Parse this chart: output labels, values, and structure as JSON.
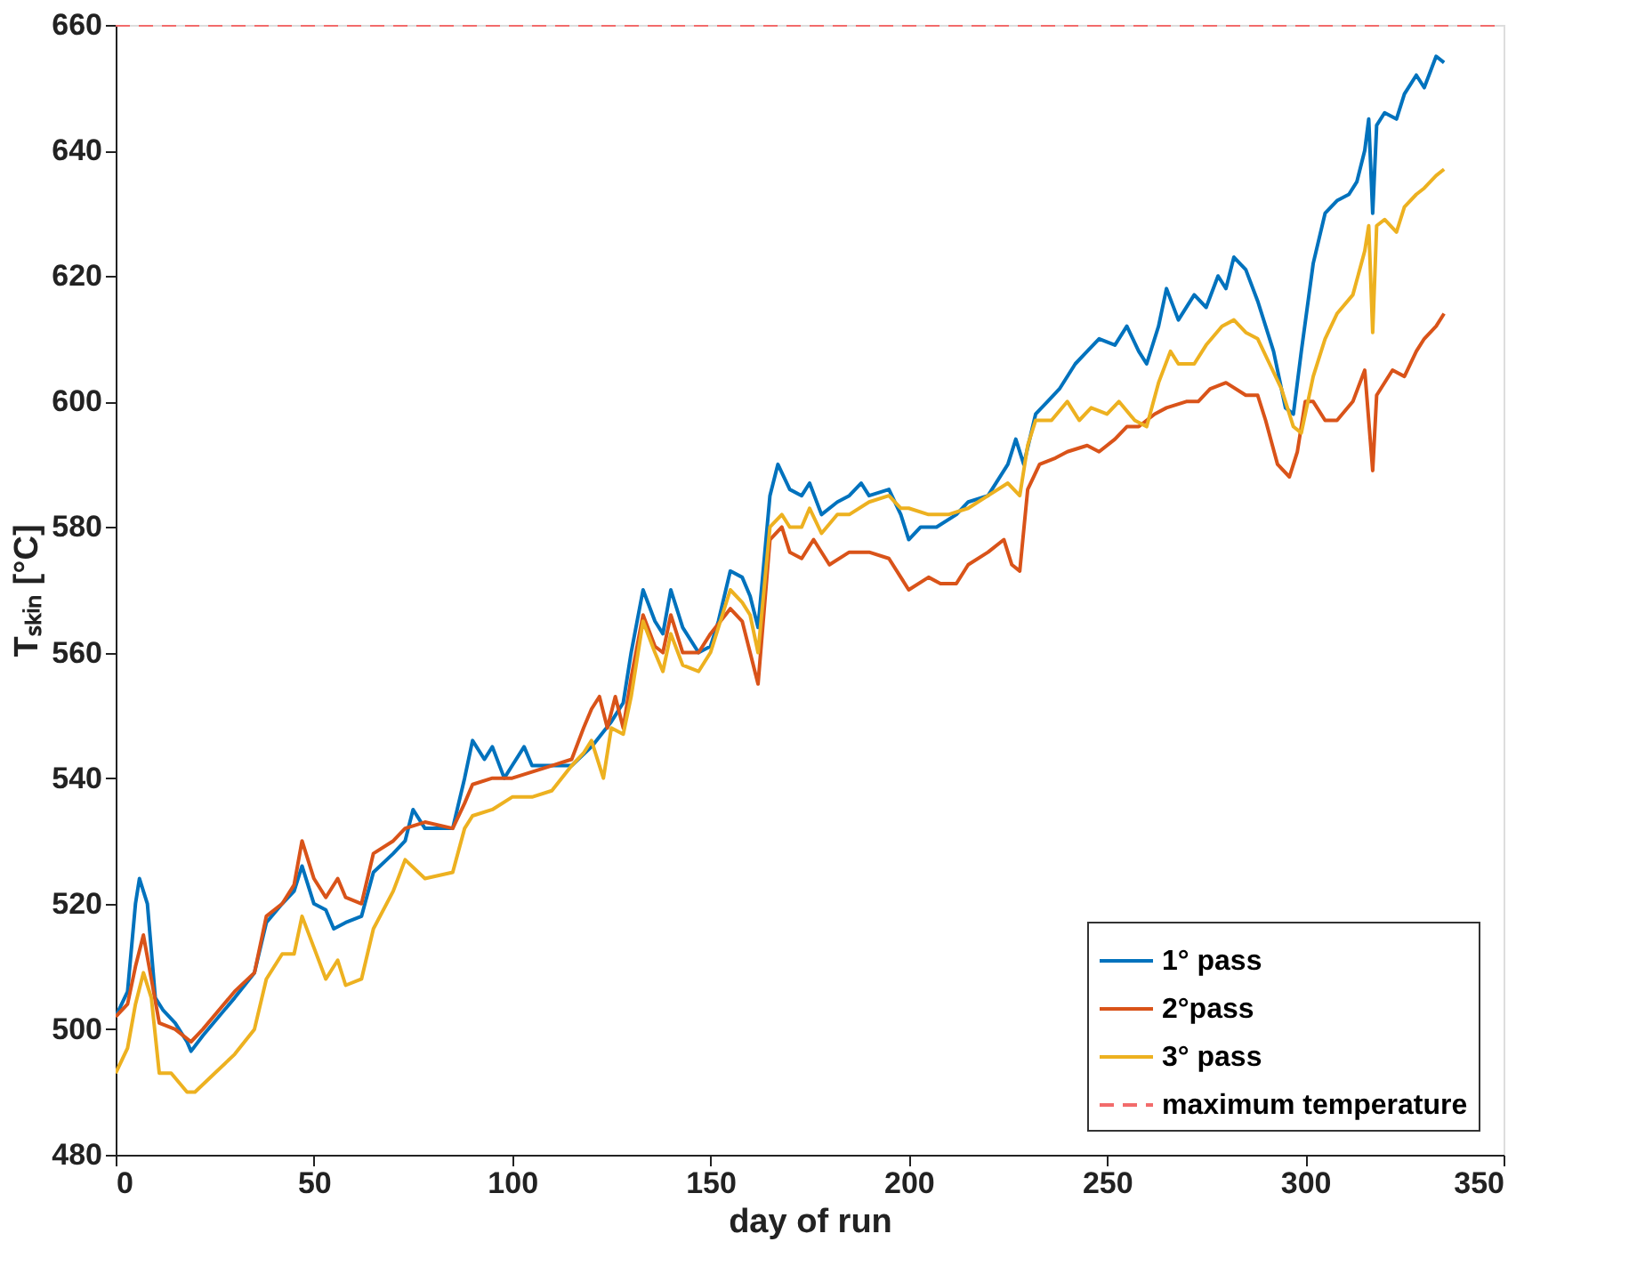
{
  "chart_data": {
    "type": "line",
    "xlabel": "day of run",
    "ylabel": "Tₛₖᵢₙ [°C]",
    "xlim": [
      0,
      350
    ],
    "xticks": [
      0,
      50,
      100,
      150,
      200,
      250,
      300,
      350
    ],
    "ylim": [
      480,
      660
    ],
    "yticks": [
      480,
      500,
      520,
      540,
      560,
      580,
      600,
      620,
      640,
      660
    ],
    "grid": false,
    "legend": "bottom right",
    "line_style": "solid",
    "marker": "none",
    "series": [
      {
        "name": "1° pass",
        "color": "#0072bd",
        "x": [
          0,
          3,
          5,
          6,
          8,
          10,
          12,
          15,
          18,
          19,
          22,
          30,
          35,
          38,
          42,
          45,
          47,
          50,
          53,
          55,
          58,
          62,
          65,
          70,
          73,
          75,
          78,
          85,
          88,
          90,
          93,
          95,
          98,
          100,
          103,
          105,
          110,
          115,
          120,
          125,
          128,
          130,
          133,
          136,
          138,
          140,
          143,
          147,
          150,
          152,
          155,
          158,
          160,
          162,
          165,
          167,
          170,
          173,
          175,
          178,
          182,
          185,
          188,
          190,
          195,
          198,
          200,
          203,
          207,
          212,
          215,
          220,
          225,
          227,
          229,
          232,
          235,
          238,
          242,
          245,
          248,
          252,
          255,
          258,
          260,
          263,
          265,
          268,
          272,
          275,
          278,
          280,
          282,
          285,
          288,
          290,
          292,
          295,
          297,
          299,
          302,
          305,
          308,
          311,
          313,
          315,
          316,
          317,
          318,
          320,
          323,
          325,
          328,
          330,
          333,
          335
        ],
        "values": [
          502,
          506,
          520,
          524,
          520,
          505,
          503,
          501,
          498,
          496.5,
          499,
          505,
          509,
          517,
          520,
          522,
          526,
          520,
          519,
          516,
          517,
          518,
          525,
          528,
          530,
          535,
          532,
          532,
          540,
          546,
          543,
          545,
          540,
          542,
          545,
          542,
          542,
          542,
          545,
          549,
          552,
          560,
          570,
          565,
          563,
          570,
          564,
          560,
          561,
          565,
          573,
          572,
          569,
          564,
          585,
          590,
          586,
          585,
          587,
          582,
          584,
          585,
          587,
          585,
          586,
          582,
          578,
          580,
          580,
          582,
          584,
          585,
          590,
          594,
          590,
          598,
          600,
          602,
          606,
          608,
          610,
          609,
          612,
          608,
          606,
          612,
          618,
          613,
          617,
          615,
          620,
          618,
          623,
          621,
          616,
          612,
          608,
          599,
          598,
          608,
          622,
          630,
          632,
          633,
          635,
          640,
          645,
          630,
          644,
          646,
          645,
          649,
          652,
          650,
          655,
          654
        ]
      },
      {
        "name": "2°pass",
        "color": "#d95319",
        "x": [
          0,
          3,
          5,
          7,
          9,
          11,
          15,
          19,
          22,
          30,
          35,
          38,
          42,
          45,
          47,
          50,
          53,
          56,
          58,
          62,
          65,
          70,
          73,
          78,
          85,
          88,
          90,
          95,
          100,
          105,
          110,
          115,
          118,
          120,
          122,
          124,
          126,
          128,
          130,
          133,
          136,
          138,
          140,
          143,
          147,
          150,
          155,
          158,
          160,
          162,
          165,
          168,
          170,
          173,
          176,
          180,
          185,
          190,
          195,
          198,
          200,
          205,
          208,
          212,
          215,
          220,
          224,
          226,
          228,
          230,
          233,
          237,
          240,
          245,
          248,
          252,
          255,
          258,
          262,
          265,
          270,
          273,
          276,
          280,
          285,
          288,
          290,
          293,
          296,
          298,
          300,
          302,
          305,
          308,
          312,
          315,
          317,
          318,
          322,
          325,
          328,
          330,
          333,
          335
        ],
        "values": [
          502,
          504,
          510,
          515,
          508,
          501,
          500,
          498,
          500,
          506,
          509,
          518,
          520,
          523,
          530,
          524,
          521,
          524,
          521,
          520,
          528,
          530,
          532,
          533,
          532,
          536,
          539,
          540,
          540,
          541,
          542,
          543,
          548,
          551,
          553,
          548,
          553,
          548,
          556,
          566,
          561,
          560,
          566,
          560,
          560,
          563,
          567,
          565,
          560,
          555,
          578,
          580,
          576,
          575,
          578,
          574,
          576,
          576,
          575,
          572,
          570,
          572,
          571,
          571,
          574,
          576,
          578,
          574,
          573,
          586,
          590,
          591,
          592,
          593,
          592,
          594,
          596,
          596,
          598,
          599,
          600,
          600,
          602,
          603,
          601,
          601,
          597,
          590,
          588,
          592,
          600,
          600,
          597,
          597,
          600,
          605,
          589,
          601,
          605,
          604,
          608,
          610,
          612,
          614
        ]
      },
      {
        "name": "3° pass",
        "color": "#edb120",
        "x": [
          0,
          3,
          5,
          7,
          9,
          11,
          14,
          18,
          20,
          25,
          30,
          35,
          38,
          42,
          45,
          47,
          50,
          53,
          56,
          58,
          62,
          65,
          70,
          73,
          78,
          85,
          88,
          90,
          95,
          100,
          105,
          110,
          115,
          118,
          120,
          123,
          125,
          128,
          130,
          133,
          136,
          138,
          140,
          143,
          147,
          150,
          155,
          158,
          160,
          162,
          165,
          168,
          170,
          173,
          175,
          178,
          182,
          185,
          190,
          195,
          198,
          200,
          205,
          210,
          215,
          220,
          225,
          228,
          230,
          232,
          236,
          240,
          243,
          246,
          250,
          253,
          257,
          260,
          263,
          266,
          268,
          272,
          275,
          279,
          282,
          285,
          288,
          291,
          294,
          297,
          299,
          302,
          305,
          308,
          312,
          315,
          316,
          317,
          318,
          320,
          323,
          325,
          328,
          330,
          333,
          335
        ],
        "values": [
          493,
          497,
          504,
          509,
          505,
          493,
          493,
          490,
          490,
          493,
          496,
          500,
          508,
          512,
          512,
          518,
          513,
          508,
          511,
          507,
          508,
          516,
          522,
          527,
          524,
          525,
          532,
          534,
          535,
          537,
          537,
          538,
          542,
          544,
          546,
          540,
          548,
          547,
          553,
          565,
          560,
          557,
          563,
          558,
          557,
          560,
          570,
          568,
          566,
          560,
          580,
          582,
          580,
          580,
          583,
          579,
          582,
          582,
          584,
          585,
          583,
          583,
          582,
          582,
          583,
          585,
          587,
          585,
          593,
          597,
          597,
          600,
          597,
          599,
          598,
          600,
          597,
          596,
          603,
          608,
          606,
          606,
          609,
          612,
          613,
          611,
          610,
          606,
          602,
          596,
          595,
          604,
          610,
          614,
          617,
          624,
          628,
          611,
          628,
          629,
          627,
          631,
          633,
          634,
          636,
          637
        ]
      }
    ],
    "ref_lines": [
      {
        "axis": "y",
        "value": 660,
        "label": "maximum temperature",
        "color": "#f26b6b",
        "line_style": "dashed"
      }
    ]
  }
}
